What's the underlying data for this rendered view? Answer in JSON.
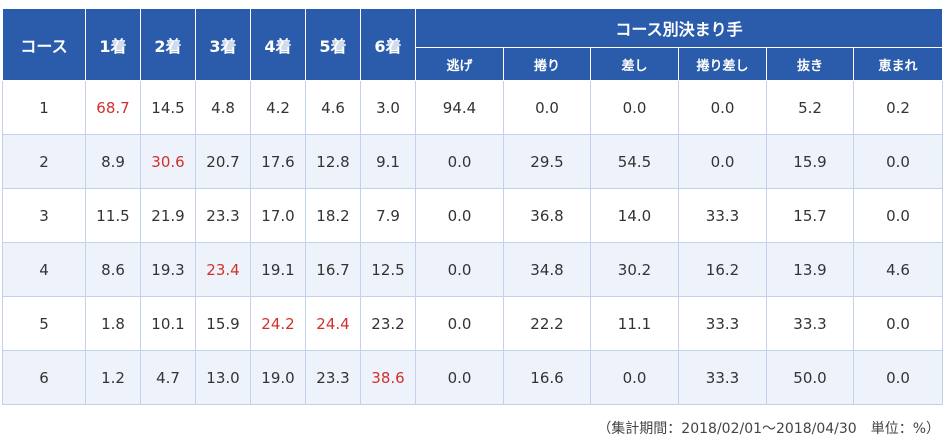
{
  "table": {
    "headers": [
      "コース",
      "1着",
      "2着",
      "3着",
      "4着",
      "5着",
      "6着"
    ],
    "group_title": "コース別決まり手",
    "subheaders": [
      "逃げ",
      "捲り",
      "差し",
      "捲り差し",
      "抜き",
      "恵まれ"
    ],
    "highlight_color": "#d0312d",
    "rows": [
      {
        "cells": [
          "1",
          "68.7",
          "14.5",
          "4.8",
          "4.2",
          "4.6",
          "3.0",
          "94.4",
          "0.0",
          "0.0",
          "0.0",
          "5.2",
          "0.2"
        ],
        "highlight": [
          1
        ]
      },
      {
        "cells": [
          "2",
          "8.9",
          "30.6",
          "20.7",
          "17.6",
          "12.8",
          "9.1",
          "0.0",
          "29.5",
          "54.5",
          "0.0",
          "15.9",
          "0.0"
        ],
        "highlight": [
          2
        ]
      },
      {
        "cells": [
          "3",
          "11.5",
          "21.9",
          "23.3",
          "17.0",
          "18.2",
          "7.9",
          "0.0",
          "36.8",
          "14.0",
          "33.3",
          "15.7",
          "0.0"
        ],
        "highlight": []
      },
      {
        "cells": [
          "4",
          "8.6",
          "19.3",
          "23.4",
          "19.1",
          "16.7",
          "12.5",
          "0.0",
          "34.8",
          "30.2",
          "16.2",
          "13.9",
          "4.6"
        ],
        "highlight": [
          3
        ]
      },
      {
        "cells": [
          "5",
          "1.8",
          "10.1",
          "15.9",
          "24.2",
          "24.4",
          "23.2",
          "0.0",
          "22.2",
          "11.1",
          "33.3",
          "33.3",
          "0.0"
        ],
        "highlight": [
          4,
          5
        ]
      },
      {
        "cells": [
          "6",
          "1.2",
          "4.7",
          "13.0",
          "19.0",
          "23.3",
          "38.6",
          "0.0",
          "16.6",
          "0.0",
          "33.3",
          "50.0",
          "0.0"
        ],
        "highlight": [
          6
        ]
      }
    ],
    "note": "（集計期間：2018/02/01～2018/04/30　単位：%）"
  }
}
